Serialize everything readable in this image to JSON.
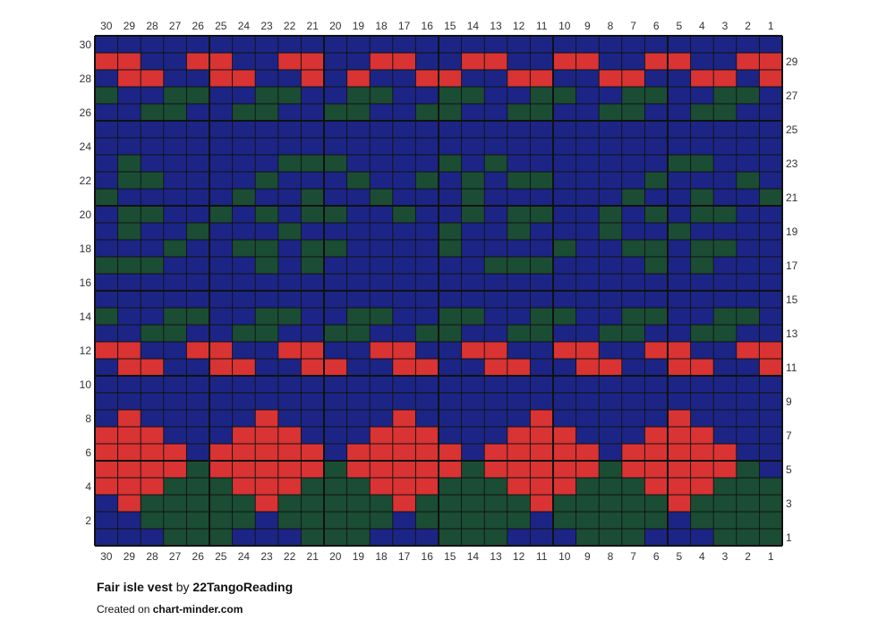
{
  "chart_data": {
    "type": "heatmap",
    "columns": 30,
    "rows": 30,
    "column_numbering": "right-to-left",
    "row_numbering": "bottom-to-top",
    "column_labels": [
      "30",
      "29",
      "28",
      "27",
      "26",
      "25",
      "24",
      "23",
      "22",
      "21",
      "20",
      "19",
      "18",
      "17",
      "16",
      "15",
      "14",
      "13",
      "12",
      "11",
      "10",
      "9",
      "8",
      "7",
      "6",
      "5",
      "4",
      "3",
      "2",
      "1"
    ],
    "left_row_labels": [
      "30",
      "28",
      "26",
      "24",
      "22",
      "20",
      "18",
      "16",
      "14",
      "12",
      "10",
      "8",
      "6",
      "4",
      "2"
    ],
    "right_row_labels": [
      "29",
      "27",
      "25",
      "23",
      "21",
      "19",
      "17",
      "15",
      "13",
      "11",
      "9",
      "7",
      "5",
      "3",
      "1"
    ],
    "grid_rows_top_to_bottom": [
      "BBBBBBBBBBBBBBBBBBBBBBBBBBBBBB",
      "RRBBRRBBRRBBRRBBRRBBRRBBRRBBRR",
      "BRRBBRRBBRBRBBRRBBRRBBRRBBRRBR",
      "GBBGGBBGGBBGGBBGGBBGGBBGGBBGGB",
      "BBGGBBGGBBGGBBGGBBGGBBGGBBGGBB",
      "BBBBBBBBBBBBBBBBBBBBBBBBBBBBBB",
      "BBBBBBBBBBBBBBBBBBBBBBBBBBBBBB",
      "BGBBBBBBGGGBBBBGBGBBBBBBBGGBBB",
      "BGGBBBBGBBBGBBGBGBGGBBBBGBBBGB",
      "GBBBBBGBBGBBGBBBGBBBBBBGBBGBBG",
      "BGGBBGBGBGGBBGBBGBGGBBGBGBGGBB",
      "BGBBGBBBGBBBBBBGBBGBBBGBBGBBBB",
      "BBBGBBGGBGGBBBBGBBBBGBBGGBGGBB",
      "GGGBBBBGBGBBBBBBBGGGBBBBGBGBBB",
      "BBBBBBBBBBBBBBBBBBBBBBBBBBBBBB",
      "BBBBBBBBBBBBBBBBBBBBBBBBBBBBBB",
      "GBBGGBBGGBBGGBBGGBBGGBBGGBBGGB",
      "BBGGBBGGBBGGBBGGBBGGBBGGBBGGBB",
      "RRBBRRBBRRBBRRBBRRBBRRBBRRBBRR",
      "BRRBBRRBBRRBBRRBBRRBBRRBBRRBBR",
      "BBBBBBBBBBBBBBBBBBBBBBBBBBBBBB",
      "BBBBBBBBBBBBBBBBBBBBBBBBBBBBBB",
      "BRBBBBBRBBBBBRBBBBBRBBBBBRBBBB",
      "RRRBBBRRRBBBRRRBBBRRRBBBRRRBBB",
      "RRRRBRRRRRBRRRRRBRRRRRBRRRRRBB",
      "RRRRGRRRRRGRRRRRGRRRRRGRRRRRGB",
      "RRRGGGRRRGGGRRRGGGRRRGGGRRRGGG",
      "BRGGGGGRGGGGGRGGGGGRGGGGGRGGGG",
      "BBGGGGGBGGGGGBGGGGGBGGGGGBGGGG",
      "BBBGGGBBBGGGBBBGGGBBBGGGBBBGGG"
    ],
    "colors": {
      "B": "#1c2585",
      "R": "#d93333",
      "G": "#1b4d34"
    },
    "gridline_color": "#111111",
    "major_line_every": 5
  },
  "caption": {
    "title": "Fair isle vest",
    "by": "by",
    "author": "22TangoReading",
    "created_prefix": "Created on",
    "created_site": "chart-minder.com"
  }
}
